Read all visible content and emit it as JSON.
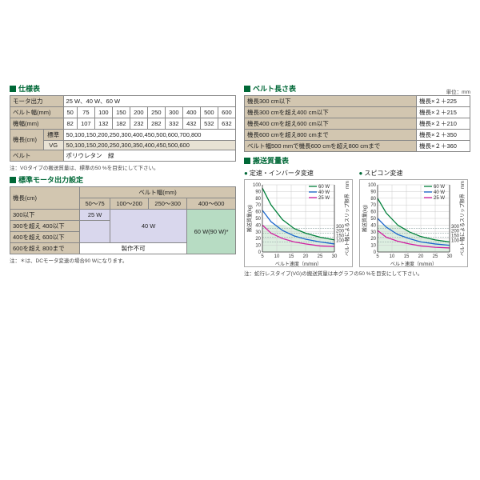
{
  "spec_table": {
    "title": "仕様表",
    "rows": [
      {
        "label": "モータ出力",
        "value": "25 W、40 W、60 W",
        "colspan": 10
      },
      {
        "label": "ベルト幅(mm)",
        "cells": [
          "50",
          "75",
          "100",
          "150",
          "200",
          "250",
          "300",
          "400",
          "500",
          "600"
        ]
      },
      {
        "label": "機幅(mm)",
        "cells": [
          "82",
          "107",
          "132",
          "182",
          "232",
          "282",
          "332",
          "432",
          "532",
          "632"
        ]
      }
    ],
    "length_label": "機長(cm)",
    "standard_label": "標準",
    "standard_values": "50,100,150,200,250,300,400,450,500,600,700,800",
    "vg_label": "VG",
    "vg_values": "50,100,150,200,250,300,350,400,450,500,600",
    "belt_label": "ベルト",
    "belt_value": "ポリウレタン　緑",
    "note": "注：VGタイプの搬送質量は、標準の50 %を目安にして下さい。"
  },
  "belt_length_table": {
    "title": "ベルト長さ表",
    "unit": "単位：mm",
    "rows": [
      {
        "cond": "機長300 cm以下",
        "val": "機長×２＋225"
      },
      {
        "cond": "機長300 cmを超え400 cm以下",
        "val": "機長×２＋215"
      },
      {
        "cond": "機長400 cmを超え600 cm以下",
        "val": "機長×２＋210"
      },
      {
        "cond": "機長600 cmを超え800 cmまで",
        "val": "機長×２＋350"
      },
      {
        "cond": "ベルト幅500 mmで機長600 cmを超え800 cmまで",
        "val": "機長×２＋360"
      }
    ]
  },
  "motor_table": {
    "title": "標準モータ出力設定",
    "row_header": "機長(cm)",
    "col_header": "ベルト幅(mm)",
    "cols": [
      "50～75",
      "100～200",
      "250～300",
      "400～600"
    ],
    "rows": [
      {
        "label": "300以下"
      },
      {
        "label": "300を超え 400以下"
      },
      {
        "label": "400を超え 600以下"
      },
      {
        "label": "600を超え 800まで"
      }
    ],
    "cell_25w": "25 W",
    "cell_40w": "40 W",
    "cell_60w": "60 W(90 W)*",
    "cell_na": "製作不可",
    "note": "注：＊は、DCモータ変速の場合90 Wになります。"
  },
  "transport_title": "搬送質量表",
  "chart1": {
    "title": "定速・インバータ変速",
    "xlabel": "ベルト速度（m/min）",
    "ylabel": "搬送質量(kg)",
    "right_label": "ベルト幅によるスリップ限界　mm",
    "xticks": [
      5,
      10,
      15,
      20,
      25,
      30
    ],
    "yticks": [
      0,
      10,
      20,
      30,
      40,
      50,
      60,
      70,
      80,
      90,
      100
    ],
    "right_ticks": [
      100,
      150,
      200,
      300
    ],
    "xlim": [
      5,
      30
    ],
    "ylim": [
      0,
      100
    ],
    "series": [
      {
        "name": "60 W",
        "color": "#00803a",
        "points": [
          [
            5,
            95
          ],
          [
            8,
            70
          ],
          [
            12,
            48
          ],
          [
            16,
            35
          ],
          [
            20,
            28
          ],
          [
            25,
            22
          ],
          [
            30,
            18
          ]
        ]
      },
      {
        "name": "40 W",
        "color": "#1a66cc",
        "points": [
          [
            5,
            62
          ],
          [
            8,
            45
          ],
          [
            12,
            32
          ],
          [
            16,
            24
          ],
          [
            20,
            19
          ],
          [
            25,
            15
          ],
          [
            30,
            12
          ]
        ]
      },
      {
        "name": "25 W",
        "color": "#d11fa0",
        "points": [
          [
            5,
            40
          ],
          [
            8,
            28
          ],
          [
            12,
            20
          ],
          [
            16,
            15
          ],
          [
            20,
            12
          ],
          [
            25,
            9
          ],
          [
            30,
            8
          ]
        ]
      }
    ],
    "slip_lines": [
      {
        "y": 35,
        "color": "#9aa"
      },
      {
        "y": 28,
        "color": "#9aa"
      },
      {
        "y": 22,
        "color": "#9aa"
      },
      {
        "y": 15,
        "color": "#9aa"
      }
    ],
    "shade_to": 40
  },
  "chart2": {
    "title": "スピコン変速",
    "xlabel": "ベルト速度（m/min）",
    "ylabel": "搬送質量(kg)",
    "right_label": "ベルト幅によるスリップ限界　mm",
    "xticks": [
      5,
      10,
      15,
      20,
      25,
      30
    ],
    "yticks": [
      0,
      10,
      20,
      30,
      40,
      50,
      60,
      70,
      80,
      90,
      100
    ],
    "right_ticks": [
      100,
      150,
      200,
      300
    ],
    "xlim": [
      5,
      30
    ],
    "ylim": [
      0,
      100
    ],
    "series": [
      {
        "name": "60 W",
        "color": "#00803a",
        "points": [
          [
            5,
            80
          ],
          [
            8,
            58
          ],
          [
            12,
            40
          ],
          [
            16,
            30
          ],
          [
            20,
            23
          ],
          [
            25,
            18
          ],
          [
            30,
            15
          ]
        ]
      },
      {
        "name": "40 W",
        "color": "#1a66cc",
        "points": [
          [
            5,
            50
          ],
          [
            8,
            37
          ],
          [
            12,
            26
          ],
          [
            16,
            20
          ],
          [
            20,
            15
          ],
          [
            25,
            12
          ],
          [
            30,
            10
          ]
        ]
      },
      {
        "name": "25 W",
        "color": "#d11fa0",
        "points": [
          [
            5,
            32
          ],
          [
            8,
            22
          ],
          [
            12,
            16
          ],
          [
            16,
            12
          ],
          [
            20,
            9
          ],
          [
            25,
            7
          ],
          [
            30,
            6
          ]
        ]
      }
    ],
    "slip_lines": [
      {
        "y": 35,
        "color": "#9aa"
      },
      {
        "y": 28,
        "color": "#9aa"
      },
      {
        "y": 22,
        "color": "#9aa"
      },
      {
        "y": 15,
        "color": "#9aa"
      }
    ],
    "shade_to": 40
  },
  "chart_note": "注：蛇行レスタイプ(VG)の搬送質量は本グラフの50 %を目安にして下さい。"
}
